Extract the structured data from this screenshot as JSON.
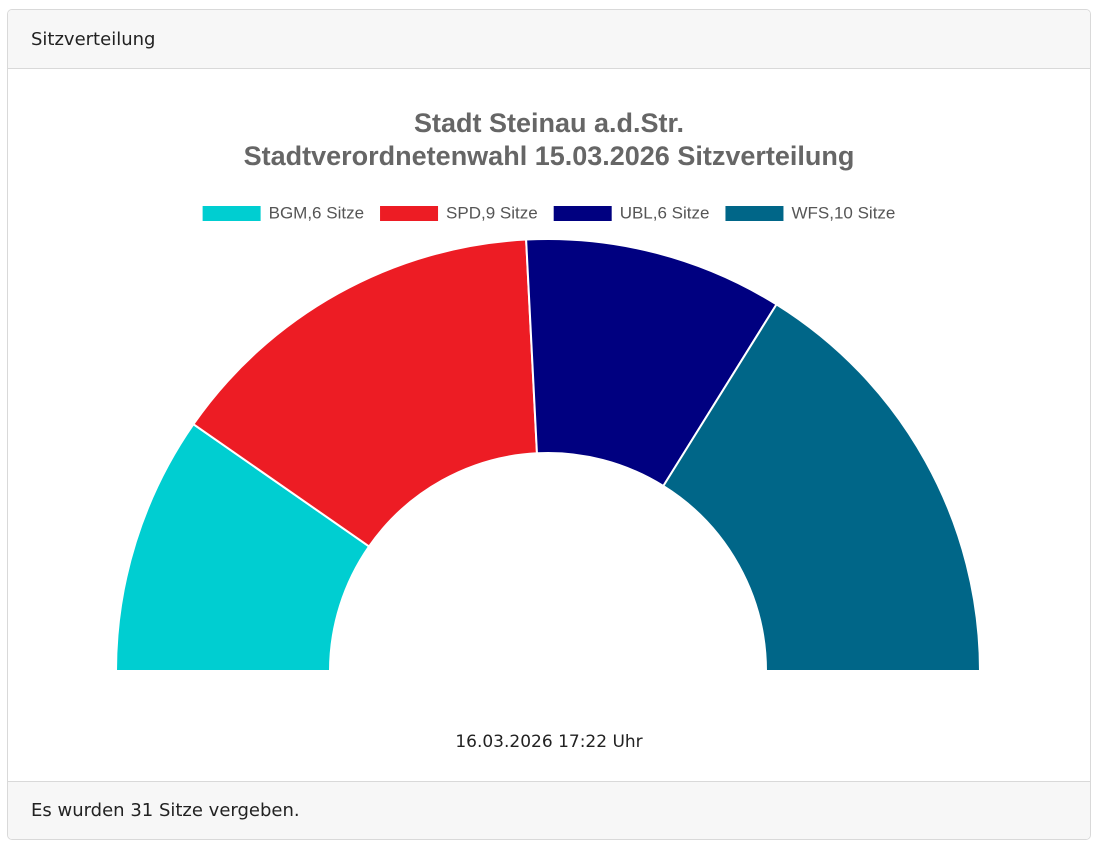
{
  "header": {
    "title": "Sitzverteilung"
  },
  "chart_data": {
    "type": "half-doughnut",
    "title": [
      "Stadt Steinau a.d.Str.",
      "Stadtverordnetenwahl 15.03.2026 Sitzverteilung"
    ],
    "categories": [
      "BGM,6 Sitze",
      "SPD,9 Sitze",
      "UBL,6 Sitze",
      "WFS,10 Sitze"
    ],
    "values": [
      6,
      9,
      6,
      10
    ],
    "colors": [
      "#00ced1",
      "#ed1c24",
      "#000080",
      "#006688"
    ],
    "legend": "top"
  },
  "timestamp": "16.03.2026 17:22 Uhr",
  "footer": {
    "text": "Es wurden 31 Sitze vergeben."
  }
}
